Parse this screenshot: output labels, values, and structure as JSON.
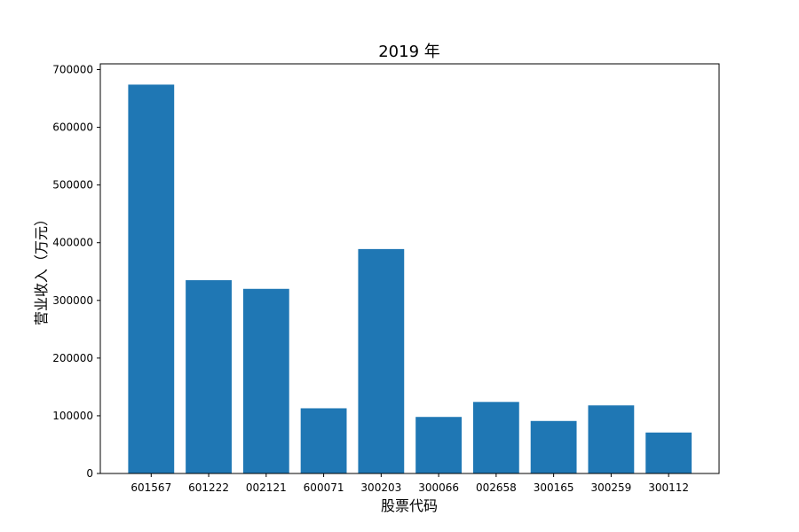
{
  "chart_data": {
    "type": "bar",
    "title": "2019 年",
    "xlabel": "股票代码",
    "ylabel": "营业收入（万元）",
    "categories": [
      "601567",
      "601222",
      "002121",
      "600071",
      "300203",
      "300066",
      "002658",
      "300165",
      "300259",
      "300112"
    ],
    "values": [
      674000,
      335000,
      320000,
      113000,
      389000,
      98000,
      124000,
      91000,
      118000,
      71000
    ],
    "ylim": [
      0,
      710000
    ],
    "yticks": [
      0,
      100000,
      200000,
      300000,
      400000,
      500000,
      600000,
      700000
    ],
    "grid": false,
    "bar_color": "#1f77b4"
  }
}
